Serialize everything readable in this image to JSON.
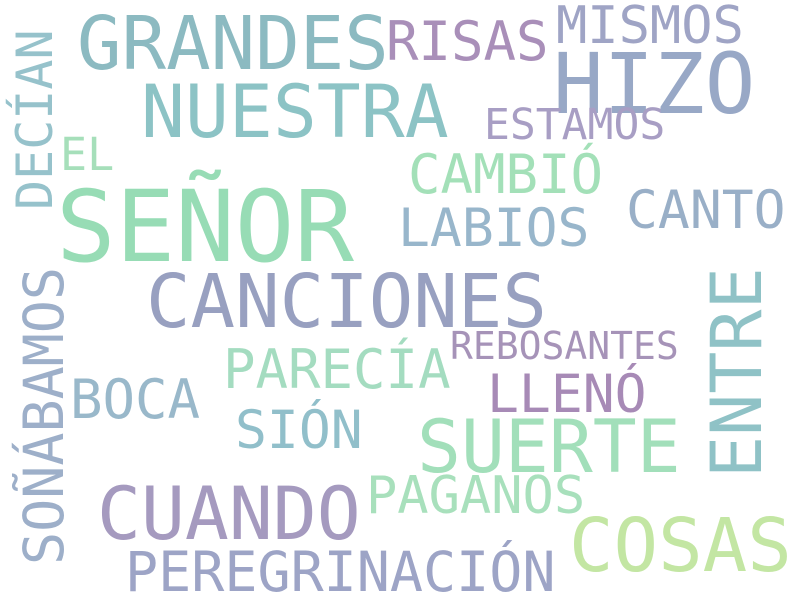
{
  "words": [
    {
      "text": "SEÑOR",
      "color": "#97dcb5"
    },
    {
      "text": "CANCIONES",
      "color": "#98a0c0"
    },
    {
      "text": "GRANDES",
      "color": "#8cbac1"
    },
    {
      "text": "NUESTRA",
      "color": "#8cc3c5"
    },
    {
      "text": "HIZO",
      "color": "#98a8c6"
    },
    {
      "text": "ENTRE",
      "color": "#8fc2c6"
    },
    {
      "text": "SUERTE",
      "color": "#a2dfba"
    },
    {
      "text": "CUANDO",
      "color": "#a59abf"
    },
    {
      "text": "COSAS",
      "color": "#c3e6a3"
    },
    {
      "text": "RISAS",
      "color": "#a98fb9"
    },
    {
      "text": "MISMOS",
      "color": "#9fa4c5"
    },
    {
      "text": "CANTO",
      "color": "#99afc7"
    },
    {
      "text": "PEREGRINACIÓN",
      "color": "#9da4c6"
    },
    {
      "text": "SOÑÁBAMOS",
      "color": "#9dafc9"
    },
    {
      "text": "DECÍAN",
      "color": "#96c2cb"
    },
    {
      "text": "CAMBIÓ",
      "color": "#a3e0b8"
    },
    {
      "text": "LABIOS",
      "color": "#98b6cb"
    },
    {
      "text": "PARECÍA",
      "color": "#a4dcc0"
    },
    {
      "text": "PAGANOS",
      "color": "#a8e0bc"
    },
    {
      "text": "LLENÓ",
      "color": "#a78ab6"
    },
    {
      "text": "BOCA",
      "color": "#99b8ca"
    },
    {
      "text": "SIÓN",
      "color": "#91bfca"
    },
    {
      "text": "ESTAMOS",
      "color": "#a89ec4"
    },
    {
      "text": "EL",
      "color": "#a6dfba"
    },
    {
      "text": "REBOSANTES",
      "color": "#a693b8"
    }
  ]
}
